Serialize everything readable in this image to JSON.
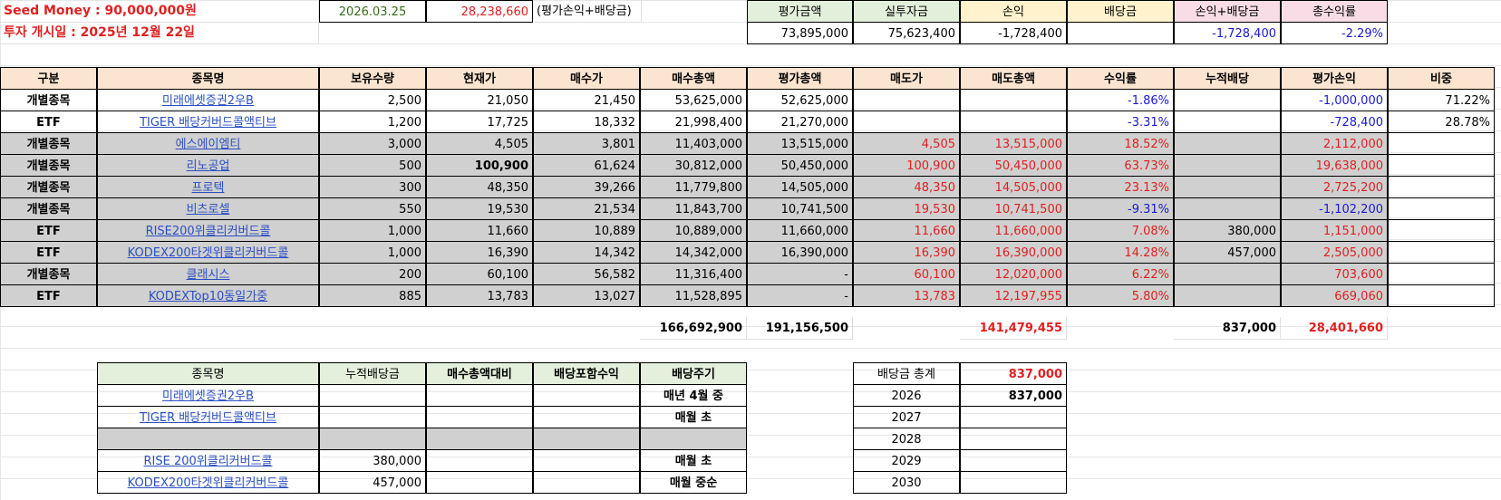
{
  "summary": {
    "seed_label": "Seed Money : 90,000,000원",
    "start_label": "투자 개시일 : 2025년 12월 22일",
    "date": "2026.03.25",
    "amount": "28,238,660",
    "note": "(평가손익+배당금)",
    "headers": [
      "평가금액",
      "실투자금",
      "손익",
      "배당금",
      "손익+배당금",
      "총수익률"
    ],
    "values": [
      "73,895,000",
      "75,623,400",
      "-1,728,400",
      "",
      "-1,728,400",
      "-2.29%"
    ]
  },
  "table": {
    "headers": [
      "구분",
      "종목명",
      "보유수량",
      "현재가",
      "매수가",
      "매수총액",
      "평가총액",
      "매도가",
      "매도총액",
      "수익률",
      "누적배당",
      "평가손익",
      "비중"
    ],
    "rows": [
      {
        "type": "개별종목",
        "name": "미래에셋증권2우B",
        "qty": "2,500",
        "cur": "21,050",
        "buy": "21,450",
        "buy_total": "53,625,000",
        "eval_total": "52,625,000",
        "sell": "",
        "sell_total": "",
        "ret": "-1.86%",
        "div": "",
        "pl": "-1,000,000",
        "weight": "71.22%"
      },
      {
        "type": "ETF",
        "name": "TIGER 배당커버드콜액티브",
        "qty": "1,200",
        "cur": "17,725",
        "buy": "18,332",
        "buy_total": "21,998,400",
        "eval_total": "21,270,000",
        "sell": "",
        "sell_total": "",
        "ret": "-3.31%",
        "div": "",
        "pl": "-728,400",
        "weight": "28.78%"
      },
      {
        "type": "개별종목",
        "name": "에스에이엠티",
        "qty": "3,000",
        "cur": "4,505",
        "buy": "3,801",
        "buy_total": "11,403,000",
        "eval_total": "13,515,000",
        "sell": "4,505",
        "sell_total": "13,515,000",
        "ret": "18.52%",
        "div": "",
        "pl": "2,112,000",
        "weight": ""
      },
      {
        "type": "개별종목",
        "name": "리노공업",
        "qty": "500",
        "cur": "100,900",
        "buy": "61,624",
        "buy_total": "30,812,000",
        "eval_total": "50,450,000",
        "sell": "100,900",
        "sell_total": "50,450,000",
        "ret": "63.73%",
        "div": "",
        "pl": "19,638,000",
        "weight": ""
      },
      {
        "type": "개별종목",
        "name": "프로텍",
        "qty": "300",
        "cur": "48,350",
        "buy": "39,266",
        "buy_total": "11,779,800",
        "eval_total": "14,505,000",
        "sell": "48,350",
        "sell_total": "14,505,000",
        "ret": "23.13%",
        "div": "",
        "pl": "2,725,200",
        "weight": ""
      },
      {
        "type": "개별종목",
        "name": "비츠로셀",
        "qty": "550",
        "cur": "19,530",
        "buy": "21,534",
        "buy_total": "11,843,700",
        "eval_total": "10,741,500",
        "sell": "19,530",
        "sell_total": "10,741,500",
        "ret": "-9.31%",
        "div": "",
        "pl": "-1,102,200",
        "weight": ""
      },
      {
        "type": "ETF",
        "name": "RISE200위클리커버드콜",
        "qty": "1,000",
        "cur": "11,660",
        "buy": "10,889",
        "buy_total": "10,889,000",
        "eval_total": "11,660,000",
        "sell": "11,660",
        "sell_total": "11,660,000",
        "ret": "7.08%",
        "div": "380,000",
        "pl": "1,151,000",
        "weight": ""
      },
      {
        "type": "ETF",
        "name": "KODEX200타겟위클리커버드콜",
        "qty": "1,000",
        "cur": "16,390",
        "buy": "14,342",
        "buy_total": "14,342,000",
        "eval_total": "16,390,000",
        "sell": "16,390",
        "sell_total": "16,390,000",
        "ret": "14.28%",
        "div": "457,000",
        "pl": "2,505,000",
        "weight": ""
      },
      {
        "type": "개별종목",
        "name": "클래시스",
        "qty": "200",
        "cur": "60,100",
        "buy": "56,582",
        "buy_total": "11,316,400",
        "eval_total": "-",
        "sell": "60,100",
        "sell_total": "12,020,000",
        "ret": "6.22%",
        "div": "",
        "pl": "703,600",
        "weight": ""
      },
      {
        "type": "ETF",
        "name": "KODEXTop10동일가중",
        "qty": "885",
        "cur": "13,783",
        "buy": "13,027",
        "buy_total": "11,528,895",
        "eval_total": "-",
        "sell": "13,783",
        "sell_total": "12,197,955",
        "ret": "5.80%",
        "div": "",
        "pl": "669,060",
        "weight": ""
      }
    ],
    "totals": {
      "buy_total": "166,692,900",
      "eval_total": "191,156,500",
      "sell_total": "141,479,455",
      "div": "837,000",
      "pl": "28,401,660"
    }
  },
  "dividends": {
    "headers": [
      "종목명",
      "누적배당금",
      "매수총액대비",
      "배당포함수익",
      "배당주기"
    ],
    "rows": [
      {
        "name": "미래에셋증권2우B",
        "amount": "",
        "ratio": "",
        "incl": "",
        "cycle": "매년 4월 중"
      },
      {
        "name": "TIGER 배당커버드콜액티브",
        "amount": "",
        "ratio": "",
        "incl": "",
        "cycle": "매월 초"
      },
      {
        "name": "",
        "amount": "",
        "ratio": "",
        "incl": "",
        "cycle": ""
      },
      {
        "name": "RISE 200위클리커버드콜",
        "amount": "380,000",
        "ratio": "",
        "incl": "",
        "cycle": "매월 초"
      },
      {
        "name": "KODEX200타겟위클리커버드콜",
        "amount": "457,000",
        "ratio": "",
        "incl": "",
        "cycle": "매월 중순"
      }
    ],
    "total_label": "배당금 총계",
    "total_value": "837,000",
    "years": [
      {
        "year": "2026",
        "value": "837,000"
      },
      {
        "year": "2027",
        "value": ""
      },
      {
        "year": "2028",
        "value": ""
      },
      {
        "year": "2029",
        "value": ""
      },
      {
        "year": "2030",
        "value": ""
      }
    ]
  }
}
